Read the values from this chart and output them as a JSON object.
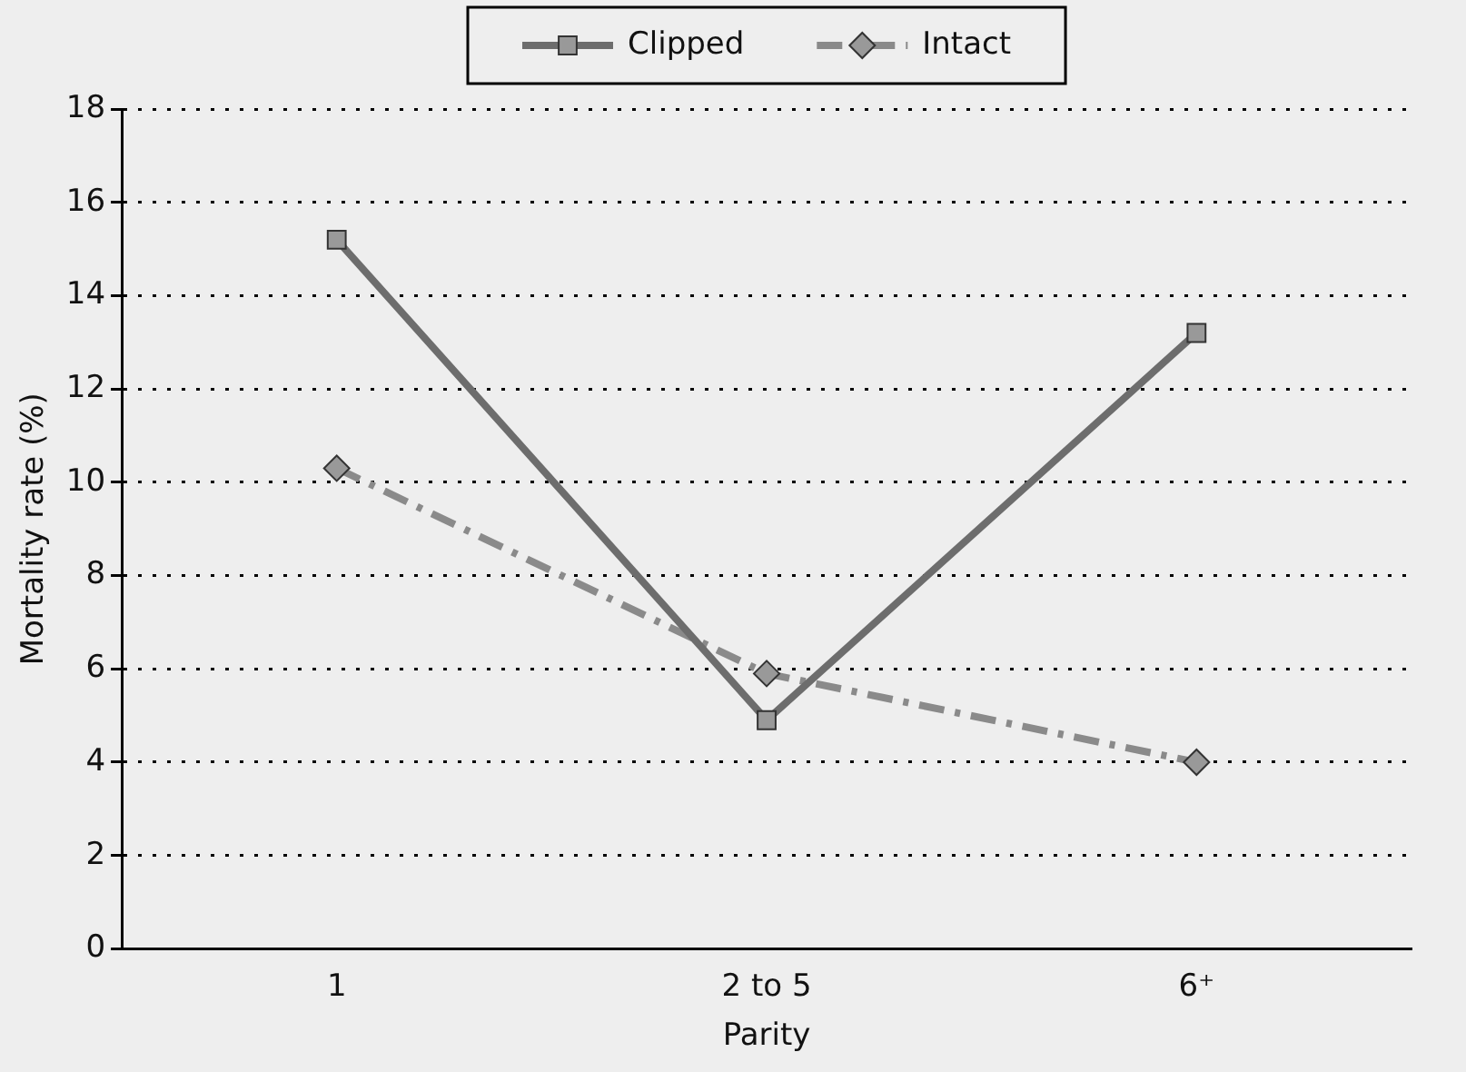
{
  "chart_data": {
    "type": "line",
    "xlabel": "Parity",
    "ylabel": "Mortality rate (%)",
    "categories": [
      "1",
      "2 to 5",
      "6⁺"
    ],
    "series": [
      {
        "name": "Clipped",
        "color": "#6d6d6d",
        "values": [
          15.2,
          4.9,
          13.2
        ],
        "marker": "square",
        "line_style": "solid"
      },
      {
        "name": "Intact",
        "color": "#8a8a8a",
        "values": [
          10.3,
          5.9,
          4.0
        ],
        "marker": "diamond",
        "line_style": "dashed"
      }
    ],
    "ylim": [
      0,
      18
    ],
    "yticks": [
      0,
      2,
      4,
      6,
      8,
      10,
      12,
      14,
      16,
      18
    ],
    "grid": "y",
    "legend": "top"
  }
}
